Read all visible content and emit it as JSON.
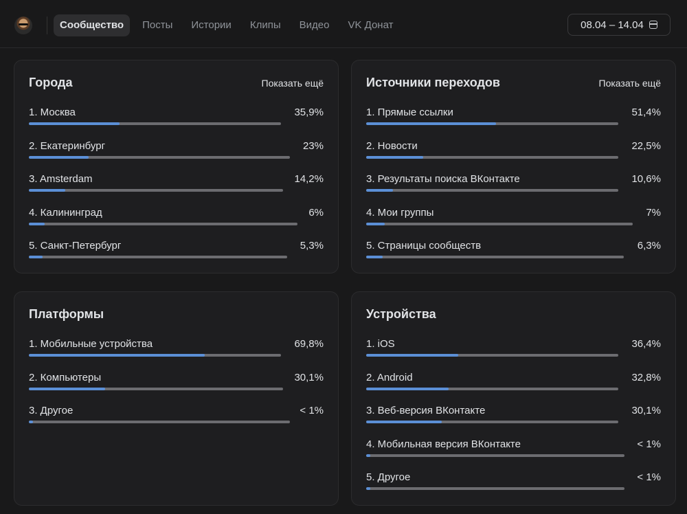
{
  "header": {
    "tabs": [
      {
        "label": "Сообщество",
        "active": true
      },
      {
        "label": "Посты",
        "active": false
      },
      {
        "label": "Истории",
        "active": false
      },
      {
        "label": "Клипы",
        "active": false
      },
      {
        "label": "Видео",
        "active": false
      },
      {
        "label": "VK Донат",
        "active": false
      }
    ],
    "date_range": "08.04 – 14.04",
    "date_icon": "calendar-icon"
  },
  "colors": {
    "accent": "#5b8fd6",
    "track": "#6c6c70",
    "background": "#19191a",
    "card": "#1e1e20"
  },
  "cards": [
    {
      "id": "cities",
      "title": "Города",
      "show_more": "Показать ещё",
      "items": [
        {
          "label": "1. Москва",
          "value": "35,9%",
          "fraction": 0.359,
          "track": 1.0
        },
        {
          "label": "2. Екатеринбург",
          "value": "23%",
          "fraction": 0.23,
          "track": 1.035
        },
        {
          "label": "3. Amsterdam",
          "value": "14,2%",
          "fraction": 0.142,
          "track": 1.008
        },
        {
          "label": "4. Калининград",
          "value": "6%",
          "fraction": 0.06,
          "track": 1.065
        },
        {
          "label": "5. Санкт-Петербург",
          "value": "5,3%",
          "fraction": 0.053,
          "track": 1.025
        }
      ]
    },
    {
      "id": "sources",
      "title": "Источники переходов",
      "show_more": "Показать ещё",
      "items": [
        {
          "label": "1. Прямые ссылки",
          "value": "51,4%",
          "fraction": 0.514,
          "track": 1.0
        },
        {
          "label": "2. Новости",
          "value": "22,5%",
          "fraction": 0.225,
          "track": 1.0
        },
        {
          "label": "3. Результаты поиска ВКонтакте",
          "value": "10,6%",
          "fraction": 0.106,
          "track": 1.0
        },
        {
          "label": "4. Мои группы",
          "value": "7%",
          "fraction": 0.07,
          "track": 1.057
        },
        {
          "label": "5. Страницы сообществ",
          "value": "6,3%",
          "fraction": 0.063,
          "track": 1.022
        }
      ]
    },
    {
      "id": "platforms",
      "title": "Платформы",
      "show_more": "",
      "items": [
        {
          "label": "1. Мобильные устройства",
          "value": "69,8%",
          "fraction": 0.698,
          "track": 1.0
        },
        {
          "label": "2. Компьютеры",
          "value": "30,1%",
          "fraction": 0.301,
          "track": 1.008
        },
        {
          "label": "3. Другое",
          "value": "< 1%",
          "fraction": 0.01,
          "track": 1.035
        }
      ]
    },
    {
      "id": "devices",
      "title": "Устройства",
      "show_more": "",
      "items": [
        {
          "label": "1. iOS",
          "value": "36,4%",
          "fraction": 0.364,
          "track": 1.0
        },
        {
          "label": "2. Android",
          "value": "32,8%",
          "fraction": 0.328,
          "track": 1.0
        },
        {
          "label": "3. Веб-версия ВКонтакте",
          "value": "30,1%",
          "fraction": 0.301,
          "track": 1.0
        },
        {
          "label": "4. Мобильная версия ВКонтакте",
          "value": "< 1%",
          "fraction": 0.01,
          "track": 1.025
        },
        {
          "label": "5. Другое",
          "value": "< 1%",
          "fraction": 0.01,
          "track": 1.025
        }
      ]
    }
  ]
}
